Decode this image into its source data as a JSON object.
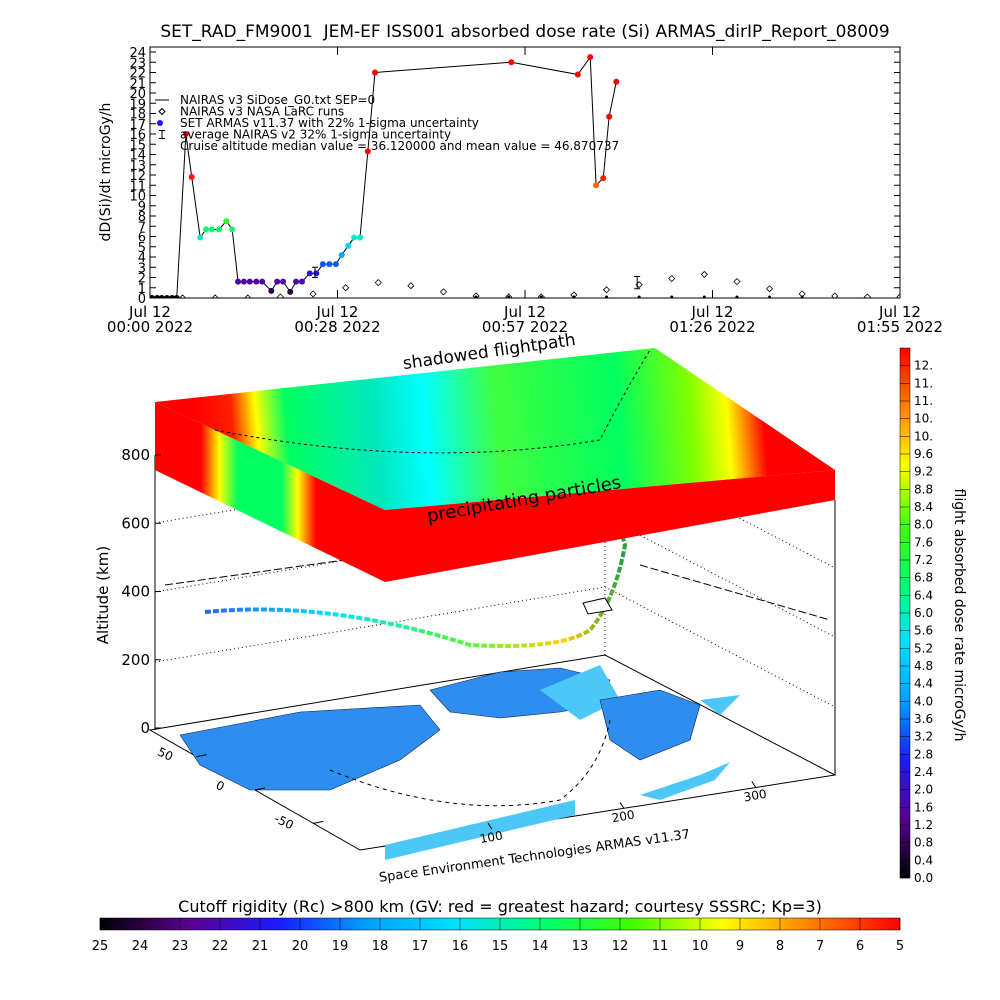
{
  "chart_data": [
    {
      "type": "line",
      "title": "SET_RAD_FM9001  JEM-EF ISS001 absorbed dose rate (Si) ARMAS_dirIP_Report_08009",
      "y_label": "dD(Si)/dt microGy/h",
      "xlim": [
        0,
        115
      ],
      "xticks": [
        {
          "value": 0,
          "label": "Jul 12\n00:00 2022"
        },
        {
          "value": 28.75,
          "label": "Jul 12\n00:28 2022"
        },
        {
          "value": 57.5,
          "label": "Jul 12\n00:57 2022"
        },
        {
          "value": 86.25,
          "label": "Jul 12\n01:26 2022"
        },
        {
          "value": 115,
          "label": "Jul 12\n01:55 2022"
        }
      ],
      "ylim": [
        0,
        24
      ],
      "yticks": [
        0,
        1,
        2,
        3,
        4,
        5,
        6,
        7,
        8,
        9,
        10,
        11,
        12,
        13,
        14,
        15,
        16,
        17,
        18,
        19,
        20,
        21,
        22,
        23,
        24
      ],
      "annotation": "Cruise altitude median value = 36.120000 and mean value = 46.870737",
      "series": [
        {
          "name": "NAIRAS v3 SiDose_G0.txt SEP=0",
          "marker": "dot",
          "color": "#000000",
          "x": [
            50,
            55,
            60,
            65,
            70,
            75,
            80,
            85,
            90,
            95,
            100
          ],
          "values": [
            0,
            0,
            0,
            0,
            0,
            0,
            0,
            0,
            0,
            0,
            0
          ]
        },
        {
          "name": "NAIRAS v3 NASA LaRC runs",
          "marker": "diamond",
          "color": "#000000",
          "x": [
            0,
            5,
            10,
            15,
            20,
            25,
            30,
            35,
            40,
            45,
            50,
            55,
            60,
            65,
            70,
            75,
            80,
            85,
            90,
            95,
            100,
            105,
            110,
            115
          ],
          "values": [
            0,
            0,
            0,
            0,
            0.1,
            0.4,
            1.0,
            1.5,
            1.2,
            0.6,
            0.2,
            0.1,
            0.1,
            0.3,
            0.8,
            1.3,
            1.9,
            2.3,
            1.6,
            0.9,
            0.4,
            0.2,
            0.1,
            0.1
          ]
        },
        {
          "name": "SET ARMAS v11.37 with 22% 1-sigma uncertainty",
          "marker": "circle",
          "color": "#1a1aff",
          "x": [
            0.3,
            1.1,
            1.8,
            2.6,
            3.4,
            4.1,
            5.5,
            6.4,
            7.7,
            8.6,
            9.5,
            10.6,
            11.7,
            12.6,
            13.5,
            14.4,
            15.3,
            16.3,
            17.2,
            18.6,
            19.5,
            20.4,
            21.5,
            22.4,
            23.3,
            24.5,
            25.5,
            26.5,
            27.5,
            28.5,
            29.4,
            30.4,
            31.3,
            32.2,
            33.4,
            34.5,
            55.4,
            65.6,
            67.5,
            68.4,
            69.5,
            70.4,
            71.5
          ],
          "values": [
            0,
            0,
            0,
            0,
            0,
            0,
            16,
            11.8,
            5.9,
            6.7,
            6.7,
            6.7,
            7.5,
            6.7,
            1.6,
            1.6,
            1.6,
            1.6,
            1.6,
            0.7,
            1.6,
            1.6,
            0.6,
            1.6,
            1.6,
            2.4,
            2.4,
            3.3,
            3.3,
            3.3,
            4.2,
            5.1,
            5.9,
            5.9,
            14.3,
            22.0,
            23.0,
            21.8,
            23.5,
            11.0,
            11.7,
            17.7,
            21.1
          ]
        },
        {
          "name": "average NAIRAS v2 32% 1-sigma uncertainty",
          "marker": "errorbar",
          "color": "#000000",
          "x": [
            25.3,
            74.7
          ],
          "values": [
            2.5,
            1.5
          ],
          "errors": [
            0.5,
            0.6
          ]
        }
      ]
    },
    {
      "type": "surface3d",
      "labels": [
        "shadowed flightpath",
        "precipitating particles"
      ],
      "credit": "Space Environment Technologies ARMAS v11.37",
      "z_label": "Altitude (km)",
      "zlim": [
        0,
        800
      ],
      "zticks": [
        0,
        200,
        400,
        600,
        800
      ],
      "ylim": [
        -90,
        90
      ],
      "yticks": [
        -50,
        0,
        50
      ],
      "xlim": [
        0,
        360
      ],
      "xticks": [
        100,
        200,
        300
      ]
    },
    {
      "type": "colorbar",
      "orientation": "vertical",
      "label": "flight absorbed dose rate microGy/h",
      "colormap": [
        "#000000",
        "#5a0090",
        "#1a1aff",
        "#00a0ff",
        "#00e0ff",
        "#00ff70",
        "#40ff00",
        "#ffff00",
        "#ff8000",
        "#ff0000"
      ],
      "lim": [
        0,
        12
      ],
      "ticks": [
        {
          "value": 0,
          "label": "0.0"
        },
        0.4,
        0.8,
        1.2,
        1.6,
        {
          "value": 2,
          "label": "2.0"
        },
        2.4,
        2.8,
        3.2,
        3.6,
        {
          "value": 4,
          "label": "4.0"
        },
        4.4,
        4.8,
        5.2,
        5.6,
        {
          "value": 6,
          "label": "6.0"
        },
        6.4,
        6.8,
        7.2,
        7.6,
        {
          "value": 8,
          "label": "8.0"
        },
        8.4,
        8.8,
        9.2,
        9.6,
        {
          "value": 10,
          "label": "10."
        },
        {
          "value": 10.4,
          "label": "10."
        },
        {
          "value": 10.8,
          "label": "11."
        },
        {
          "value": 11.2,
          "label": "11."
        },
        {
          "value": 11.6,
          "label": "12."
        }
      ]
    },
    {
      "type": "colorbar",
      "orientation": "horizontal",
      "label": "Cutoff rigidity (Rc) >800 km (GV: red = greatest hazard; courtesy SSSRC; Kp=3)",
      "colormap": [
        "#000000",
        "#5a0090",
        "#1a1aff",
        "#00a0ff",
        "#00e0ff",
        "#00ff70",
        "#40ff00",
        "#ffff00",
        "#ff8000",
        "#ff0000"
      ],
      "lim": [
        25,
        5
      ],
      "ticks": [
        25,
        24,
        23,
        22,
        21,
        20,
        19,
        18,
        17,
        16,
        15,
        14,
        13,
        12,
        11,
        10,
        9,
        8,
        7,
        6,
        5
      ]
    }
  ]
}
